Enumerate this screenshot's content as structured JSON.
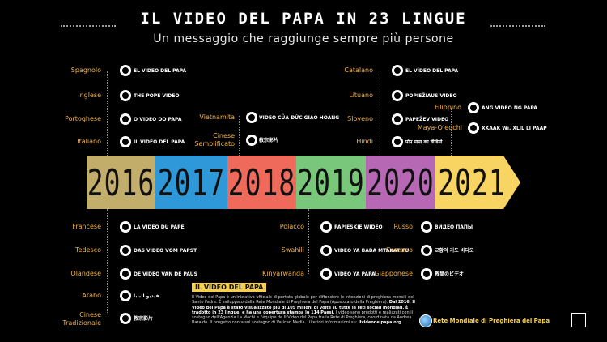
{
  "header": {
    "title": "IL VIDEO DEL PAPA IN 23 LINGUE",
    "subtitle": "Un messaggio che raggiunge sempre più persone"
  },
  "colors": {
    "2016": "#c2ad6b",
    "2017": "#2f98d8",
    "2018": "#ef6a5a",
    "2019": "#79c77b",
    "2020": "#b768b4",
    "2021": "#f8d463"
  },
  "years": [
    "2016",
    "2017",
    "2018",
    "2019",
    "2020",
    "2021"
  ],
  "top": [
    {
      "lang": "Spagnolo",
      "video": "EL VIDEO DEL PAPA"
    },
    {
      "lang": "Inglese",
      "video": "THE POPE VIDEO"
    },
    {
      "lang": "Portoghese",
      "video": "O VIDEO DO PAPA"
    },
    {
      "lang": "Italiano",
      "video": "IL VIDEO DEL PAPA"
    },
    {
      "lang": "Vietnamita",
      "video": "VIDEO CỦA ĐỨC GIÁO HOÀNG"
    },
    {
      "lang": "Cinese Semplificato",
      "video": "教宗影片"
    },
    {
      "lang": "Catalano",
      "video": "EL VÍDEO DEL PAPA"
    },
    {
      "lang": "Lituano",
      "video": "POPIEŽIAUS VIDEO"
    },
    {
      "lang": "Sloveno",
      "video": "PAPEŽEV VIDEO"
    },
    {
      "lang": "Hindi",
      "video": "पोप पापा का वीडियो"
    },
    {
      "lang": "Filippino",
      "video": "ANG VIDEO NG PAPA"
    },
    {
      "lang": "Maya-Q’eqchi",
      "video": "XKAAK Wi. XLIL LI PAAP"
    }
  ],
  "bottom": [
    {
      "lang": "Francese",
      "video": "LA VIDÉO DU PAPE"
    },
    {
      "lang": "Tedesco",
      "video": "DAS VIDEO VOM PAPST"
    },
    {
      "lang": "Olandese",
      "video": "DE VIDEO VAN DE PAUS"
    },
    {
      "lang": "Arabo",
      "video": "فيديو البابا"
    },
    {
      "lang": "Cinese Tradizionale",
      "video": "教宗影片"
    },
    {
      "lang": "Polacco",
      "video": "PAPIESKIE WIDEO"
    },
    {
      "lang": "Swahili",
      "video": "VIDEO YA BABA MTAKATIFU"
    },
    {
      "lang": "Kinyarwanda",
      "video": "VIDEO YA PAPA"
    },
    {
      "lang": "Russo",
      "video": "ВИДЕО ПАПЫ"
    },
    {
      "lang": "Coreano",
      "video": "교황의 기도 비디오"
    },
    {
      "lang": "Giapponese",
      "video": "教皇のビデオ"
    }
  ],
  "info": {
    "title": "IL VIDEO DEL PAPA",
    "p1": "Il Video del Papa è un'iniziativa ufficiale di portata globale per diffondere le intenzioni di preghiera mensili del Santo Padre.",
    "p2": "È sviluppato dalla Rete Mondiale di Preghiera del Papa (Apostolato della Preghiera).",
    "bold1": "Dal 2016, Il Video del Papa è stato visualizzato più di 105 milioni di volte su tutte le reti sociali mondiali. È tradotto in 23 lingue, e ha una copertura stampa in 114 Paesi.",
    "p3": "I video sono prodotti e realizzati con il sostegno dell'Agenzia La Machi e l'équipe de Il Video del Papa fra la Rete di Preghiera, coordinata da Andrea Baraldo. Il progetto conta sul sostegno di Vatican Media. Ulteriori informazioni su:",
    "link": "ilvideodelpapa.org"
  },
  "footer": {
    "org": "Rete Mondiale di Preghiera del Papa"
  }
}
